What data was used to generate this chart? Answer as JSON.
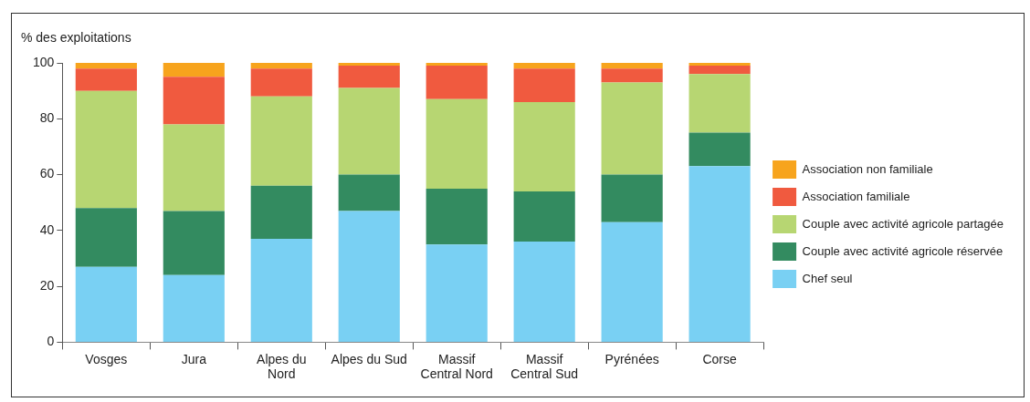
{
  "chart_data": {
    "type": "bar",
    "stacked": true,
    "ylabel": "% des exploitations",
    "categories": [
      "Vosges",
      "Jura",
      "Alpes du Nord",
      "Alpes du Sud",
      "Massif Central Nord",
      "Massif Central Sud",
      "Pyrénées",
      "Corse"
    ],
    "series": [
      {
        "name": "Chef seul",
        "color": "#79d0f3",
        "values": [
          27,
          24,
          37,
          47,
          35,
          36,
          43,
          63
        ]
      },
      {
        "name": "Couple avec activité agricole réservée",
        "color": "#338b60",
        "values": [
          21,
          23,
          19,
          13,
          20,
          18,
          17,
          12
        ]
      },
      {
        "name": "Couple avec activité agricole partagée",
        "color": "#b7d672",
        "values": [
          42,
          31,
          32,
          31,
          32,
          32,
          33,
          21
        ]
      },
      {
        "name": "Association familiale",
        "color": "#f05a3f",
        "values": [
          8,
          17,
          10,
          8,
          12,
          12,
          5,
          3
        ]
      },
      {
        "name": "Association non familiale",
        "color": "#f7a41d",
        "values": [
          2,
          5,
          2,
          1,
          1,
          2,
          2,
          1
        ]
      }
    ],
    "ylim": [
      0,
      100
    ],
    "yticks": [
      0,
      20,
      40,
      60,
      80,
      100
    ],
    "grid": false,
    "legend": "right"
  }
}
